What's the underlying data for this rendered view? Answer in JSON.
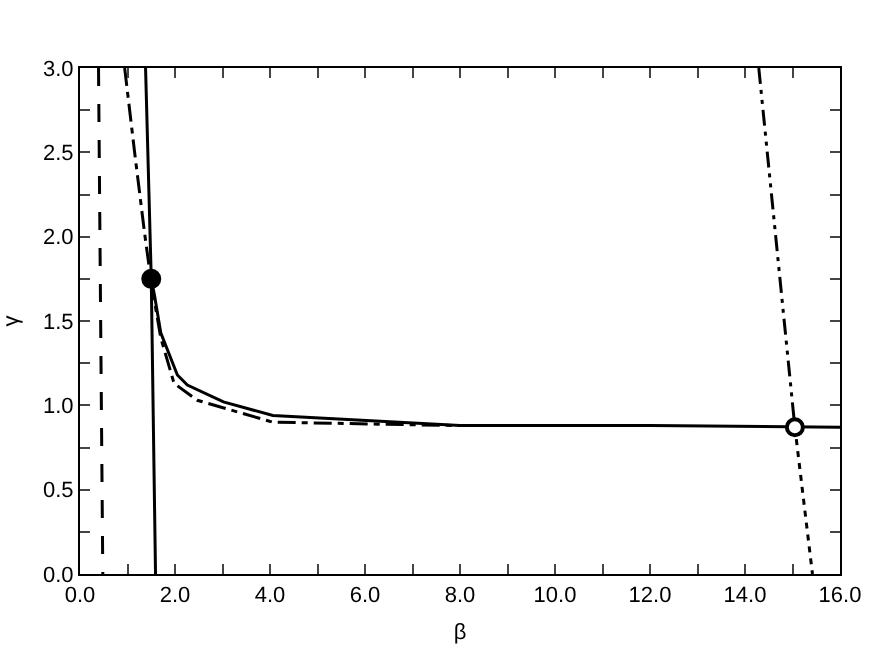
{
  "chart_data": {
    "type": "line",
    "xlabel": "β",
    "ylabel": "γ",
    "xlim": [
      0,
      16
    ],
    "ylim": [
      0,
      3
    ],
    "xticks": [
      {
        "value": 0,
        "label": "0.0"
      },
      {
        "value": 1,
        "label": null
      },
      {
        "value": 2,
        "label": "2.0"
      },
      {
        "value": 3,
        "label": null
      },
      {
        "value": 4,
        "label": "4.0"
      },
      {
        "value": 5,
        "label": null
      },
      {
        "value": 6,
        "label": "6.0"
      },
      {
        "value": 7,
        "label": null
      },
      {
        "value": 8,
        "label": "8.0"
      },
      {
        "value": 9,
        "label": null
      },
      {
        "value": 10,
        "label": "10.0"
      },
      {
        "value": 11,
        "label": null
      },
      {
        "value": 12,
        "label": "12.0"
      },
      {
        "value": 13,
        "label": null
      },
      {
        "value": 14,
        "label": "14.0"
      },
      {
        "value": 15,
        "label": null
      },
      {
        "value": 16,
        "label": "16.0"
      }
    ],
    "yticks": [
      {
        "value": 0,
        "label": "0.0"
      },
      {
        "value": 0.25,
        "label": null
      },
      {
        "value": 0.5,
        "label": "0.5"
      },
      {
        "value": 0.75,
        "label": null
      },
      {
        "value": 1,
        "label": "1.0"
      },
      {
        "value": 1.25,
        "label": null
      },
      {
        "value": 1.5,
        "label": "1.5"
      },
      {
        "value": 1.75,
        "label": null
      },
      {
        "value": 2,
        "label": "2.0"
      },
      {
        "value": 2.25,
        "label": null
      },
      {
        "value": 2.5,
        "label": "2.5"
      },
      {
        "value": 2.75,
        "label": null
      },
      {
        "value": 3,
        "label": "3.0"
      }
    ],
    "grid": false,
    "marker": "none",
    "series": [
      {
        "color": "#000000",
        "line_style": "dashed",
        "x": [
          0.39,
          0.48
        ],
        "values": [
          3,
          0
        ]
      },
      {
        "color": "#000000",
        "line_style": "solid",
        "x": [
          1.38,
          1.5,
          1.59
        ],
        "values": [
          3,
          1.75,
          0
        ]
      },
      {
        "color": "#000000",
        "line_style": "solid",
        "x": [
          1.5,
          1.57,
          1.7,
          2.05,
          2.26,
          3.02,
          4.06,
          8,
          12,
          16
        ],
        "values": [
          1.75,
          1.65,
          1.43,
          1.18,
          1.12,
          1.02,
          0.94,
          0.88,
          0.88,
          0.87
        ]
      },
      {
        "color": "#000000",
        "line_style": "dashdot",
        "x": [
          0.94,
          1.15,
          1.36,
          1.5,
          1.7,
          1.98,
          2.47,
          4.06,
          8
        ],
        "values": [
          3,
          2.5,
          2.02,
          1.73,
          1.4,
          1.13,
          1.03,
          0.9,
          0.88
        ]
      },
      {
        "color": "#000000",
        "line_style": "dashdotdot",
        "x": [
          14.29,
          15.05
        ],
        "values": [
          3,
          0.87
        ]
      },
      {
        "color": "#000000",
        "line_style": "dotted",
        "x": [
          15.05,
          15.42
        ],
        "values": [
          0.87,
          0
        ]
      },
      {
        "type": "scatter",
        "color": "#000000",
        "marker": "circle",
        "x": [
          1.5
        ],
        "values": [
          1.75
        ]
      },
      {
        "type": "scatter",
        "color": "#ffffff",
        "marker": "circle",
        "x": [
          15.05
        ],
        "values": [
          0.87
        ]
      }
    ]
  }
}
